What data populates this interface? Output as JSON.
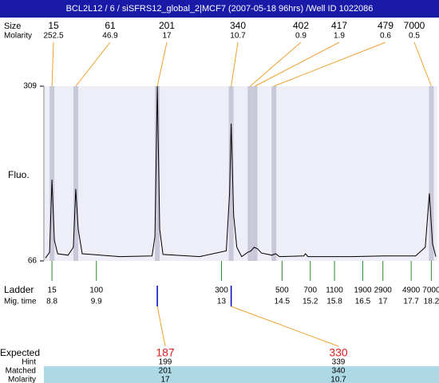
{
  "chart_data": {
    "type": "line",
    "title": "BCL2L12 / 6 / siSFRS12_global_2|MCF7 (2007-05-18 96hrs) /Well ID 1022086",
    "size_label": "Size",
    "molarity_label": "Molarity",
    "ylabel": "Fluo.",
    "ladder_label": "Ladder",
    "migtime_label": "Mig. time",
    "x": [
      8.64,
      8.74,
      8.8,
      8.86,
      8.94,
      9.2,
      9.33,
      9.39,
      9.45,
      9.55,
      10.48,
      11.28,
      11.35,
      11.41,
      11.47,
      11.55,
      12.46,
      13.12,
      13.2,
      13.24,
      13.3,
      13.38,
      13.5,
      13.65,
      13.73,
      13.81,
      13.89,
      13.99,
      14.25,
      14.34,
      14.44,
      15.04,
      15.08,
      15.14,
      16.23,
      17.02,
      17.81,
      18.05,
      18.15,
      18.23,
      18.31
    ],
    "values": [
      70,
      78,
      179,
      95,
      76,
      74,
      85,
      166,
      110,
      76,
      72,
      73,
      100,
      309,
      110,
      75,
      72,
      80,
      160,
      257,
      130,
      85,
      72,
      78,
      80,
      85,
      83,
      77,
      74,
      76,
      72,
      73,
      76,
      72,
      72,
      73,
      73,
      85,
      160,
      90,
      72
    ],
    "color": "#000000",
    "band_color": "#c8c8d8",
    "background": "#eeeef8",
    "xlim": [
      8.6,
      18.35
    ],
    "ylim": [
      66,
      309
    ],
    "yticks": [
      66,
      309
    ],
    "peaks": [
      {
        "size": 15,
        "molarity": 252.5,
        "time": 8.8
      },
      {
        "size": 61,
        "molarity": 46.9,
        "time": 9.39
      },
      {
        "size": 201,
        "molarity": 17,
        "time": 11.41
      },
      {
        "size": 340,
        "molarity": 10.7,
        "time": 13.24
      },
      {
        "size": 402,
        "molarity": 0.9,
        "time": 13.71
      },
      {
        "size": 417,
        "molarity": 1.9,
        "time": 13.83
      },
      {
        "size": 479,
        "molarity": 0.6,
        "time": 14.3
      },
      {
        "size": 7000,
        "molarity": 0.5,
        "time": 18.2
      }
    ],
    "ladder": {
      "sizes": [
        15,
        100,
        300,
        500,
        700,
        1100,
        1900,
        2900,
        4900,
        7000
      ],
      "times": [
        8.8,
        9.9,
        13,
        14.5,
        15.2,
        15.8,
        16.5,
        17,
        17.7,
        18.2
      ]
    },
    "table_labels": {
      "expected": "Expected",
      "hint": "Hint",
      "matched": "Matched",
      "molarity": "Molarity"
    },
    "expected": [
      {
        "expected": 187,
        "hint": 199,
        "matched": 201,
        "molarity": 17,
        "time": 11.41
      },
      {
        "expected": 330,
        "hint": 339,
        "matched": 340,
        "molarity": 10.7,
        "time": 13.24
      }
    ]
  }
}
